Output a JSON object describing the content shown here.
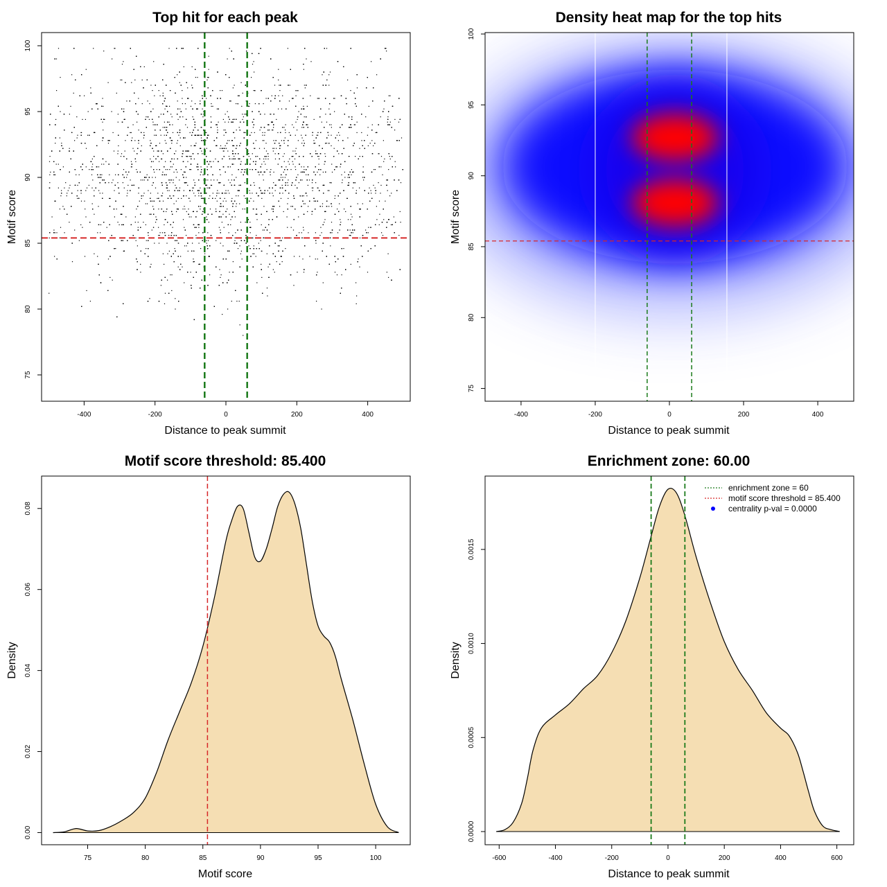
{
  "chart_data": [
    {
      "type": "scatter",
      "title": "Top hit for each peak",
      "xlabel": "Distance to peak summit",
      "ylabel": "Motif score",
      "xlim": [
        -520,
        520
      ],
      "ylim": [
        73,
        101
      ],
      "xticks": [
        -400,
        -200,
        0,
        200,
        400
      ],
      "xtick_labels": [
        "-400",
        "-200",
        "0",
        "200",
        "400"
      ],
      "yticks": [
        75,
        80,
        85,
        90,
        95,
        100
      ],
      "ytick_labels": [
        "75",
        "80",
        "85",
        "90",
        "95",
        "100"
      ],
      "point_count_estimate": 6000,
      "x_range": [
        -500,
        500
      ],
      "y_range": [
        74.1,
        99.9
      ],
      "score_distribution": {
        "peaks": [
          88.2,
          92.6
        ],
        "spread": 3.5
      },
      "position_distribution": {
        "center": 10,
        "spread": 230
      },
      "score_threshold": 85.4,
      "enrichment_zone": [
        -60,
        60
      ],
      "threshold_color": "#d62728",
      "zone_color": "#1a7a1a"
    },
    {
      "type": "heatmap",
      "title": "Density heat map for the top hits",
      "xlabel": "Distance to peak summit",
      "ylabel": "Motif score",
      "xlim": [
        -497,
        497
      ],
      "ylim": [
        74.1,
        100.1
      ],
      "xticks": [
        -400,
        -200,
        0,
        200,
        400
      ],
      "xtick_labels": [
        "-400",
        "-200",
        "0",
        "200",
        "400"
      ],
      "yticks": [
        75,
        80,
        85,
        90,
        95,
        100
      ],
      "ytick_labels": [
        "75",
        "80",
        "85",
        "90",
        "95",
        "100"
      ],
      "hotspots": [
        {
          "x": 15,
          "y": 92.7,
          "level": "high"
        },
        {
          "x": 15,
          "y": 88.1,
          "level": "high"
        }
      ],
      "color_scale": [
        "#ffffff",
        "#0000ff",
        "#ff0000"
      ],
      "guide_lines_x": [
        -200,
        155
      ],
      "score_threshold": 85.4,
      "enrichment_zone": [
        -60,
        60
      ]
    },
    {
      "type": "area",
      "title": "Motif score threshold: 85.400",
      "xlabel": "Motif score",
      "ylabel": "Density",
      "xlim": [
        71,
        103
      ],
      "ylim": [
        -0.003,
        0.088
      ],
      "xticks": [
        75,
        80,
        85,
        90,
        95,
        100
      ],
      "xtick_labels": [
        "75",
        "80",
        "85",
        "90",
        "95",
        "100"
      ],
      "yticks": [
        0,
        0.02,
        0.04,
        0.06,
        0.08
      ],
      "ytick_labels": [
        "0.00",
        "0.02",
        "0.04",
        "0.06",
        "0.08"
      ],
      "x": [
        72,
        73,
        74,
        75,
        76,
        77,
        78,
        79,
        80,
        81,
        82,
        83,
        84,
        85,
        86,
        87,
        87.5,
        88,
        88.5,
        89,
        89.5,
        90,
        90.5,
        91,
        91.5,
        92,
        92.5,
        93,
        93.5,
        94,
        94.5,
        95,
        95.5,
        96,
        96.5,
        97,
        98,
        99,
        100,
        101,
        102
      ],
      "values": [
        0,
        0.0002,
        0.001,
        0.0004,
        0.0005,
        0.0015,
        0.003,
        0.005,
        0.0085,
        0.015,
        0.023,
        0.03,
        0.037,
        0.046,
        0.058,
        0.072,
        0.077,
        0.0805,
        0.08,
        0.074,
        0.068,
        0.067,
        0.07,
        0.075,
        0.0805,
        0.0835,
        0.084,
        0.081,
        0.075,
        0.066,
        0.057,
        0.051,
        0.0485,
        0.047,
        0.0435,
        0.038,
        0.028,
        0.017,
        0.007,
        0.0015,
        0
      ],
      "fill_color": "#f5deb3",
      "score_threshold": 85.4
    },
    {
      "type": "area",
      "title": "Enrichment zone: 60.00",
      "xlabel": "Distance to peak summit",
      "ylabel": "Density",
      "xlim": [
        -650,
        660
      ],
      "ylim": [
        -7e-05,
        0.00189
      ],
      "xticks": [
        -600,
        -400,
        -200,
        0,
        200,
        400,
        600
      ],
      "xtick_labels": [
        "-600",
        "-400",
        "-200",
        "0",
        "200",
        "400",
        "600"
      ],
      "yticks": [
        0,
        0.0005,
        0.001,
        0.0015
      ],
      "ytick_labels": [
        "0.0000",
        "0.0005",
        "0.0010",
        "0.0015"
      ],
      "x": [
        -610,
        -580,
        -550,
        -520,
        -500,
        -480,
        -450,
        -400,
        -350,
        -300,
        -250,
        -200,
        -150,
        -100,
        -60,
        -30,
        0,
        30,
        60,
        100,
        150,
        200,
        250,
        300,
        350,
        400,
        430,
        460,
        480,
        500,
        520,
        550,
        580,
        610
      ],
      "values": [
        0,
        1e-05,
        5e-05,
        0.00015,
        0.00028,
        0.00043,
        0.00055,
        0.00062,
        0.00068,
        0.00076,
        0.00083,
        0.00095,
        0.00112,
        0.00135,
        0.00157,
        0.00173,
        0.00182,
        0.0018,
        0.00168,
        0.00146,
        0.00122,
        0.00101,
        0.00086,
        0.00075,
        0.00063,
        0.00055,
        0.00051,
        0.00042,
        0.00032,
        0.00021,
        0.00011,
        3e-05,
        1e-05,
        0
      ],
      "fill_color": "#f5deb3",
      "enrichment_zone": [
        -60,
        60
      ],
      "legend": [
        {
          "label": "enrichment zone = 60",
          "style": "dotted",
          "color": "#1a7a1a"
        },
        {
          "label": "motif score threshold = 85.400",
          "style": "dotted",
          "color": "#d62728"
        },
        {
          "label": "centrality p-val = 0.0000",
          "style": "dot",
          "color": "#0000ff"
        }
      ],
      "legend_position": "top-right"
    }
  ]
}
